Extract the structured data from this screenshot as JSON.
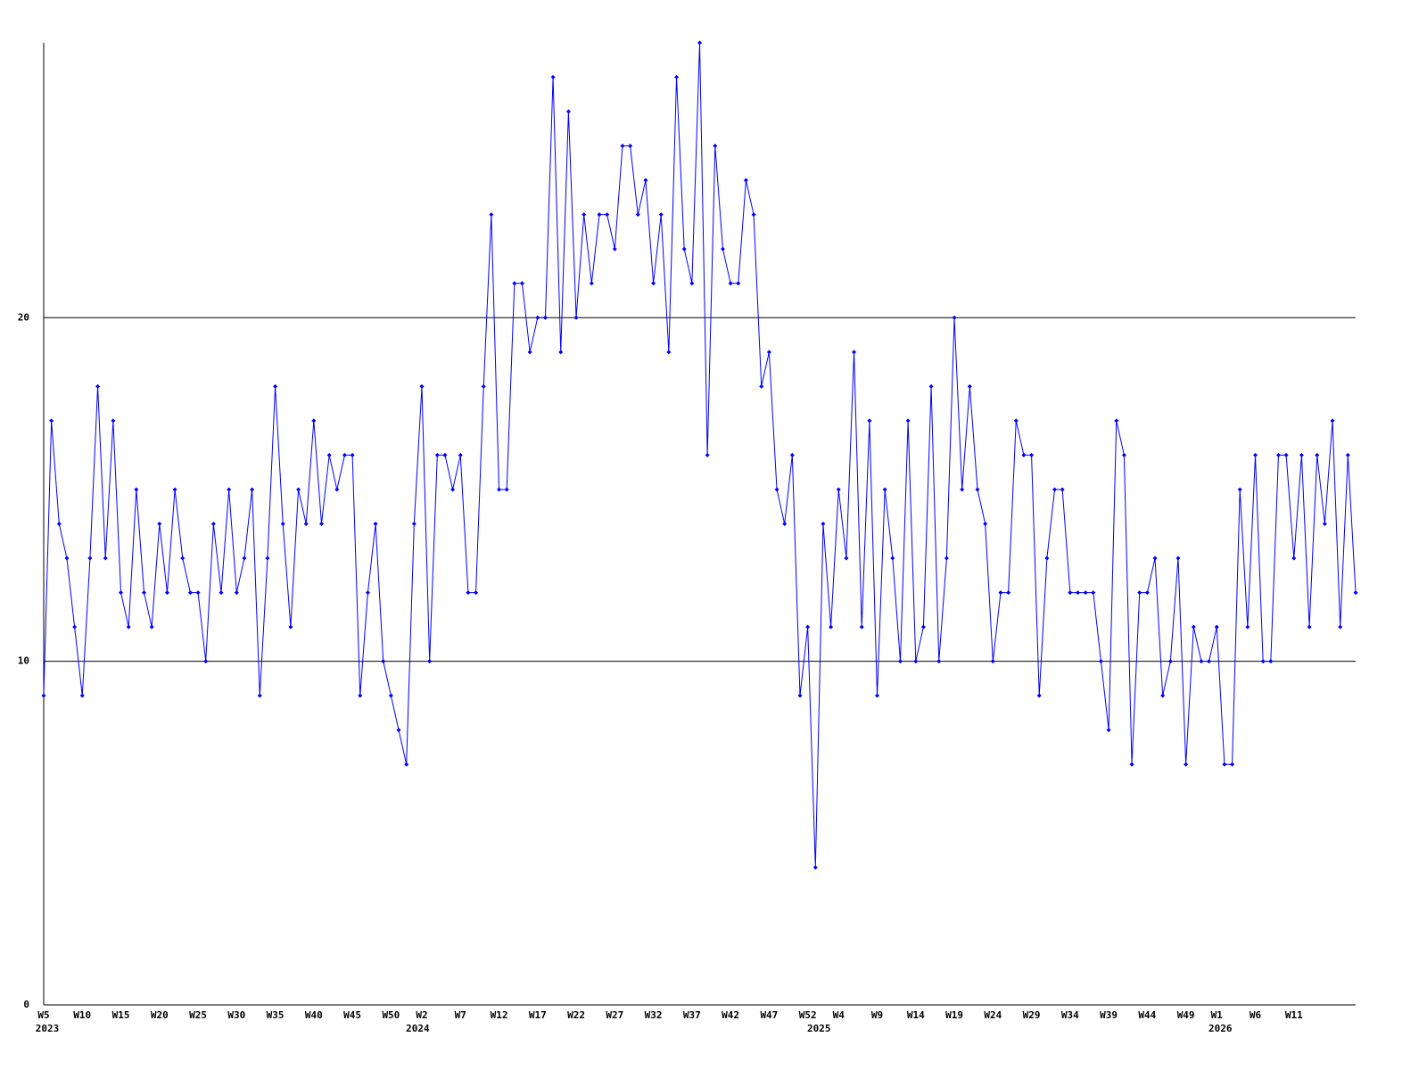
{
  "chart_data": {
    "type": "line",
    "categories": [
      "W5",
      null,
      null,
      null,
      null,
      "W10",
      null,
      null,
      null,
      null,
      "W15",
      null,
      null,
      null,
      null,
      "W20",
      null,
      null,
      null,
      null,
      "W25",
      null,
      null,
      null,
      null,
      "W30",
      null,
      null,
      null,
      null,
      "W35",
      null,
      null,
      null,
      null,
      "W40",
      null,
      null,
      null,
      null,
      "W45",
      null,
      null,
      null,
      null,
      "W50",
      null,
      null,
      null,
      "W2",
      null,
      null,
      null,
      null,
      "W7",
      null,
      null,
      null,
      null,
      "W12",
      null,
      null,
      null,
      null,
      "W17",
      null,
      null,
      null,
      null,
      "W22",
      null,
      null,
      null,
      null,
      "W27",
      null,
      null,
      null,
      null,
      "W32",
      null,
      null,
      null,
      null,
      "W37",
      null,
      null,
      null,
      null,
      "W42",
      null,
      null,
      null,
      null,
      "W47",
      null,
      null,
      null,
      null,
      "W52",
      null,
      null,
      null,
      "W4",
      null,
      null,
      null,
      null,
      "W9",
      null,
      null,
      null,
      null,
      "W14",
      null,
      null,
      null,
      null,
      "W19",
      null,
      null,
      null,
      null,
      "W24",
      null,
      null,
      null,
      null,
      "W29",
      null,
      null,
      null,
      null,
      "W34",
      null,
      null,
      null,
      null,
      "W39",
      null,
      null,
      null,
      null,
      "W44",
      null,
      null,
      null,
      null,
      "W49",
      null,
      null,
      null,
      "W1",
      null,
      null,
      null,
      null,
      "W6",
      null,
      null,
      null,
      null,
      "W11",
      null,
      null,
      null,
      null,
      null,
      null,
      null,
      null
    ],
    "years": [
      "2023",
      null,
      null,
      null,
      null,
      null,
      null,
      null,
      null,
      null,
      null,
      null,
      null,
      null,
      null,
      null,
      null,
      null,
      null,
      null,
      null,
      null,
      null,
      null,
      null,
      null,
      null,
      null,
      null,
      null,
      null,
      null,
      null,
      null,
      null,
      null,
      null,
      null,
      null,
      null,
      null,
      null,
      null,
      null,
      null,
      null,
      null,
      null,
      "2024",
      null,
      null,
      null,
      null,
      null,
      null,
      null,
      null,
      null,
      null,
      null,
      null,
      null,
      null,
      null,
      null,
      null,
      null,
      null,
      null,
      null,
      null,
      null,
      null,
      null,
      null,
      null,
      null,
      null,
      null,
      null,
      null,
      null,
      null,
      null,
      null,
      null,
      null,
      null,
      null,
      null,
      null,
      null,
      null,
      null,
      null,
      null,
      null,
      null,
      null,
      null,
      "2025",
      null,
      null,
      null,
      null,
      null,
      null,
      null,
      null,
      null,
      null,
      null,
      null,
      null,
      null,
      null,
      null,
      null,
      null,
      null,
      null,
      null,
      null,
      null,
      null,
      null,
      null,
      null,
      null,
      null,
      null,
      null,
      null,
      null,
      null,
      null,
      null,
      null,
      null,
      null,
      null,
      null,
      null,
      null,
      null,
      null,
      null,
      null,
      null,
      null,
      null,
      null,
      "2026",
      null,
      null,
      null,
      null,
      null,
      null,
      null,
      null,
      null,
      null,
      null,
      null,
      null,
      null,
      null,
      null,
      null
    ],
    "series": [
      {
        "color": "#0000ff",
        "values": [
          9,
          17,
          14,
          13,
          11,
          9,
          13,
          18,
          13,
          17,
          12,
          11,
          15,
          12,
          11,
          14,
          12,
          15,
          13,
          12,
          12,
          10,
          14,
          12,
          15,
          12,
          13,
          15,
          9,
          13,
          18,
          14,
          11,
          15,
          14,
          17,
          14,
          16,
          15,
          16,
          16,
          9,
          12,
          14,
          10,
          9,
          8,
          7,
          14,
          18,
          10,
          16,
          16,
          15,
          16,
          12,
          12,
          18,
          23,
          15,
          15,
          21,
          21,
          19,
          20,
          20,
          27,
          19,
          26,
          20,
          23,
          21,
          23,
          23,
          22,
          25,
          25,
          23,
          24,
          21,
          23,
          19,
          27,
          22,
          21,
          28,
          16,
          25,
          22,
          21,
          21,
          24,
          23,
          18,
          19,
          15,
          14,
          16,
          9,
          11,
          4,
          14,
          11,
          15,
          13,
          19,
          11,
          17,
          9,
          15,
          13,
          10,
          17,
          10,
          11,
          18,
          10,
          13,
          20,
          15,
          18,
          15,
          14,
          10,
          12,
          12,
          17,
          16,
          16,
          9,
          13,
          15,
          15,
          12,
          12,
          12,
          12,
          10,
          8,
          17,
          16,
          7,
          12,
          12,
          13,
          9,
          10,
          13,
          7,
          11,
          10,
          10,
          11,
          7,
          7,
          15,
          11,
          16,
          10,
          10,
          16,
          16,
          13,
          16,
          11,
          16,
          14,
          17,
          11,
          16,
          12
        ]
      }
    ],
    "ylim": [
      0,
      28
    ],
    "yticks": [
      0,
      10,
      20
    ],
    "grid": true
  }
}
